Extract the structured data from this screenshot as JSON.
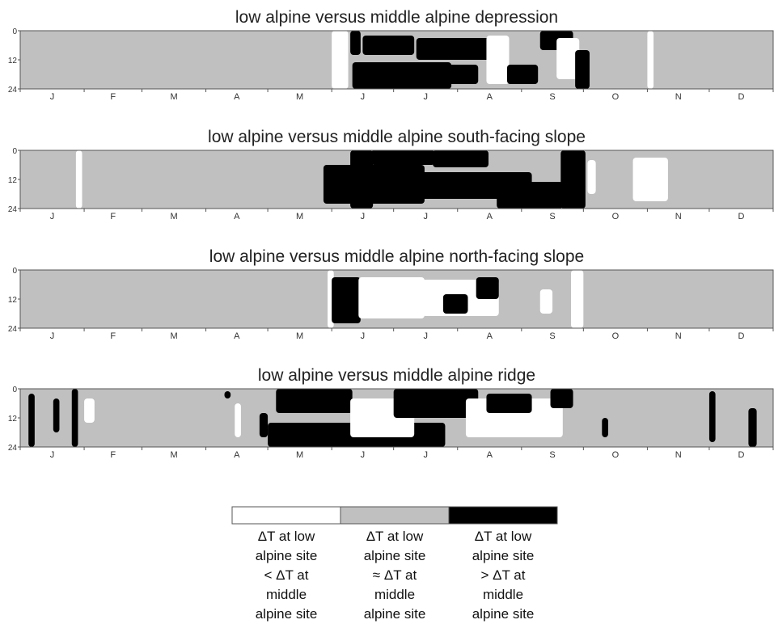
{
  "chart_data": [
    {
      "type": "heatmap",
      "title": "low alpine versus middle alpine depression",
      "y_ticks": [
        "0",
        "12",
        "24"
      ],
      "ylim": [
        0,
        24
      ],
      "months": [
        "J",
        "F",
        "M",
        "A",
        "M",
        "J",
        "J",
        "A",
        "S",
        "O",
        "N",
        "D"
      ],
      "patches": [
        {
          "cls": "white",
          "start": "Jun 1",
          "end": "Jun 8",
          "h0": 0,
          "h1": 24
        },
        {
          "cls": "black",
          "start": "Jun 10",
          "end": "Jun 14",
          "h0": 0,
          "h1": 10
        },
        {
          "cls": "black",
          "start": "Jun 11",
          "end": "Jul 28",
          "h0": 13,
          "h1": 24
        },
        {
          "cls": "black",
          "start": "Jun 16",
          "end": "Jul 10",
          "h0": 2,
          "h1": 10
        },
        {
          "cls": "black",
          "start": "Jul 12",
          "end": "Aug 20",
          "h0": 3,
          "h1": 12
        },
        {
          "cls": "black",
          "start": "Jul 15",
          "end": "Aug 10",
          "h0": 14,
          "h1": 22
        },
        {
          "cls": "white",
          "start": "Aug 15",
          "end": "Aug 25",
          "h0": 2,
          "h1": 22
        },
        {
          "cls": "black",
          "start": "Aug 25",
          "end": "Sep 8",
          "h0": 14,
          "h1": 22
        },
        {
          "cls": "black",
          "start": "Sep 10",
          "end": "Sep 25",
          "h0": 0,
          "h1": 8
        },
        {
          "cls": "white",
          "start": "Sep 18",
          "end": "Sep 28",
          "h0": 3,
          "h1": 20
        },
        {
          "cls": "black",
          "start": "Sep 27",
          "end": "Oct 3",
          "h0": 8,
          "h1": 24
        },
        {
          "cls": "white",
          "start": "Nov 1",
          "end": "Nov 3",
          "h0": 0,
          "h1": 24
        }
      ]
    },
    {
      "type": "heatmap",
      "title": "low alpine versus middle alpine south-facing slope",
      "y_ticks": [
        "0",
        "12",
        "24"
      ],
      "ylim": [
        0,
        24
      ],
      "months": [
        "J",
        "F",
        "M",
        "A",
        "M",
        "J",
        "J",
        "A",
        "S",
        "O",
        "N",
        "D"
      ],
      "patches": [
        {
          "cls": "white",
          "start": "Jan 28",
          "end": "Jan 30",
          "h0": 0,
          "h1": 24
        },
        {
          "cls": "black",
          "start": "May 28",
          "end": "Jul 15",
          "h0": 6,
          "h1": 22
        },
        {
          "cls": "black",
          "start": "Jun 10",
          "end": "Jun 20",
          "h0": 0,
          "h1": 24
        },
        {
          "cls": "black",
          "start": "Jun 20",
          "end": "Jul 20",
          "h0": 0,
          "h1": 6
        },
        {
          "cls": "black",
          "start": "Jul 1",
          "end": "Sep 5",
          "h0": 9,
          "h1": 20
        },
        {
          "cls": "black",
          "start": "Jul 20",
          "end": "Aug 15",
          "h0": 0,
          "h1": 7
        },
        {
          "cls": "black",
          "start": "Aug 20",
          "end": "Sep 20",
          "h0": 13,
          "h1": 24
        },
        {
          "cls": "black",
          "start": "Sep 20",
          "end": "Oct 1",
          "h0": 0,
          "h1": 24
        },
        {
          "cls": "white",
          "start": "Oct 3",
          "end": "Oct 6",
          "h0": 4,
          "h1": 18
        },
        {
          "cls": "white",
          "start": "Oct 25",
          "end": "Nov 10",
          "h0": 3,
          "h1": 21
        }
      ]
    },
    {
      "type": "heatmap",
      "title": "low alpine versus middle alpine north-facing slope",
      "y_ticks": [
        "0",
        "12",
        "24"
      ],
      "ylim": [
        0,
        24
      ],
      "months": [
        "J",
        "F",
        "M",
        "A",
        "M",
        "J",
        "J",
        "A",
        "S",
        "O",
        "N",
        "D"
      ],
      "patches": [
        {
          "cls": "white",
          "start": "May 30",
          "end": "Jun 1",
          "h0": 0,
          "h1": 24
        },
        {
          "cls": "black",
          "start": "Jun 1",
          "end": "Jun 14",
          "h0": 3,
          "h1": 22
        },
        {
          "cls": "white",
          "start": "Jun 14",
          "end": "Jul 15",
          "h0": 3,
          "h1": 20
        },
        {
          "cls": "white",
          "start": "Jul 15",
          "end": "Aug 20",
          "h0": 4,
          "h1": 19
        },
        {
          "cls": "black",
          "start": "Jul 25",
          "end": "Aug 5",
          "h0": 10,
          "h1": 18
        },
        {
          "cls": "black",
          "start": "Aug 10",
          "end": "Aug 20",
          "h0": 3,
          "h1": 12
        },
        {
          "cls": "white",
          "start": "Sep 10",
          "end": "Sep 15",
          "h0": 8,
          "h1": 18
        },
        {
          "cls": "white",
          "start": "Sep 25",
          "end": "Sep 30",
          "h0": 0,
          "h1": 24
        }
      ]
    },
    {
      "type": "heatmap",
      "title": "low alpine versus middle alpine ridge",
      "y_ticks": [
        "0",
        "12",
        "24"
      ],
      "ylim": [
        0,
        24
      ],
      "months": [
        "J",
        "F",
        "M",
        "A",
        "M",
        "J",
        "J",
        "A",
        "S",
        "O",
        "N",
        "D"
      ],
      "patches": [
        {
          "cls": "black",
          "start": "Jan 5",
          "end": "Jan 7",
          "h0": 2,
          "h1": 24
        },
        {
          "cls": "black",
          "start": "Jan 17",
          "end": "Jan 19",
          "h0": 4,
          "h1": 18
        },
        {
          "cls": "black",
          "start": "Jan 26",
          "end": "Jan 28",
          "h0": 0,
          "h1": 24
        },
        {
          "cls": "white",
          "start": "Feb 1",
          "end": "Feb 5",
          "h0": 4,
          "h1": 14
        },
        {
          "cls": "black",
          "start": "Apr 10",
          "end": "Apr 12",
          "h0": 1,
          "h1": 4
        },
        {
          "cls": "white",
          "start": "Apr 15",
          "end": "Apr 17",
          "h0": 6,
          "h1": 20
        },
        {
          "cls": "black",
          "start": "Apr 27",
          "end": "Apr 30",
          "h0": 10,
          "h1": 20
        },
        {
          "cls": "black",
          "start": "May 1",
          "end": "Jul 25",
          "h0": 14,
          "h1": 24
        },
        {
          "cls": "black",
          "start": "May 5",
          "end": "Jun 10",
          "h0": 0,
          "h1": 10
        },
        {
          "cls": "white",
          "start": "Jun 10",
          "end": "Jul 10",
          "h0": 4,
          "h1": 20
        },
        {
          "cls": "black",
          "start": "Jul 1",
          "end": "Aug 10",
          "h0": 0,
          "h1": 12
        },
        {
          "cls": "white",
          "start": "Aug 5",
          "end": "Sep 20",
          "h0": 4,
          "h1": 20
        },
        {
          "cls": "black",
          "start": "Aug 15",
          "end": "Sep 5",
          "h0": 2,
          "h1": 10
        },
        {
          "cls": "black",
          "start": "Sep 15",
          "end": "Sep 25",
          "h0": 0,
          "h1": 8
        },
        {
          "cls": "black",
          "start": "Oct 10",
          "end": "Oct 12",
          "h0": 12,
          "h1": 20
        },
        {
          "cls": "black",
          "start": "Dec 1",
          "end": "Dec 3",
          "h0": 1,
          "h1": 22
        },
        {
          "cls": "black",
          "start": "Dec 20",
          "end": "Dec 23",
          "h0": 8,
          "h1": 24
        }
      ]
    }
  ],
  "legend": [
    {
      "cls": "white",
      "color": "#ffffff",
      "label": "ΔT at low\nalpine site\n< ΔT at\nmiddle\nalpine site"
    },
    {
      "cls": "gray",
      "color": "#c0c0c0",
      "label": "ΔT at low\nalpine site\n≈ ΔT at\nmiddle\nalpine site"
    },
    {
      "cls": "black",
      "color": "#000000",
      "label": "ΔT at low\nalpine site\n> ΔT at\nmiddle\nalpine site"
    }
  ],
  "colors": {
    "white": "#ffffff",
    "gray": "#c0c0c0",
    "black": "#000000",
    "frame": "#555555"
  }
}
